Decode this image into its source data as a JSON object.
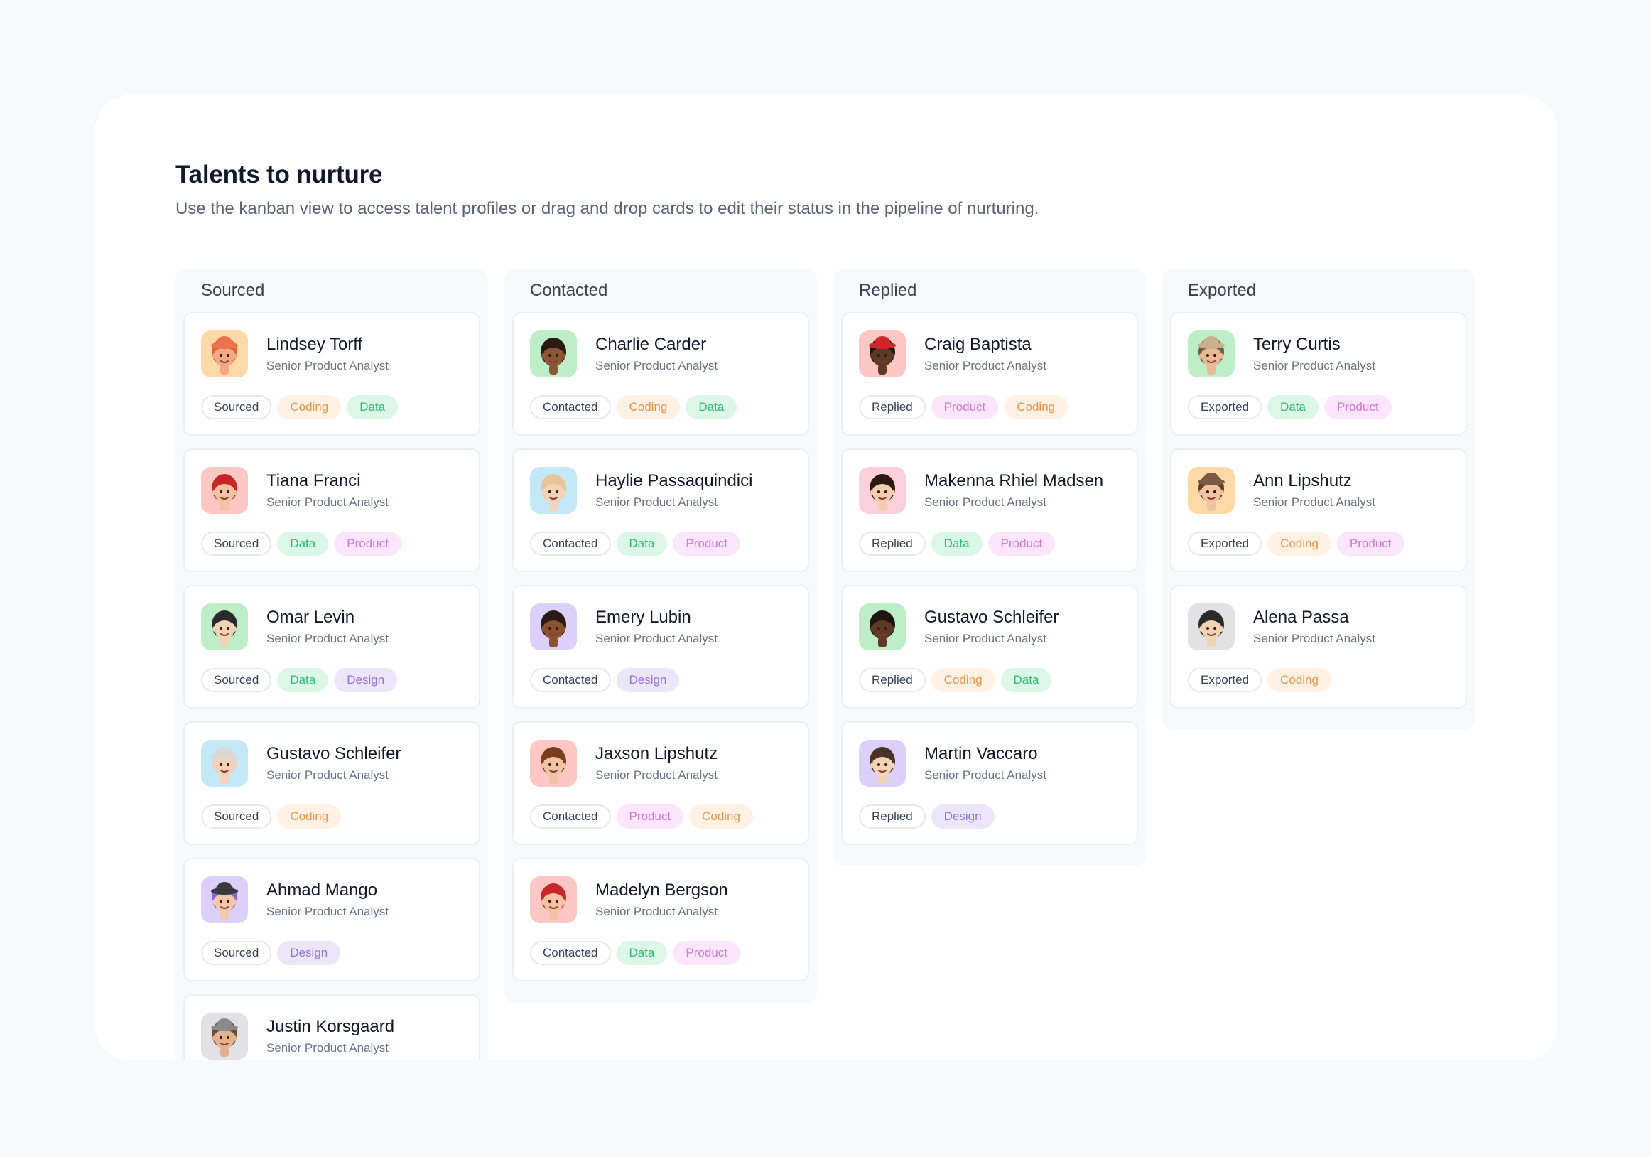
{
  "header": {
    "title": "Talents to nurture",
    "subtitle": "Use the kanban view to access talent profiles or drag and drop cards to edit their status in the pipeline of nurturing."
  },
  "tag_colors": {
    "Coding": {
      "bg": "#fff1e3",
      "fg": "#f0944a"
    },
    "Data": {
      "bg": "#dcf7e8",
      "fg": "#2dbb72"
    },
    "Product": {
      "bg": "#fbe6fb",
      "fg": "#d276d8"
    },
    "Design": {
      "bg": "#ece6fb",
      "fg": "#9473d6"
    }
  },
  "columns": [
    {
      "title": "Sourced",
      "cards": [
        {
          "name": "Lindsey Torff",
          "role": "Senior Product Analyst",
          "status": "Sourced",
          "tags": [
            "Coding",
            "Data"
          ],
          "avatar": {
            "bg": "#fdd9a8",
            "skin": "#f2a883",
            "hair": "#e0663a",
            "hat": "#e8734c"
          }
        },
        {
          "name": "Tiana Franci",
          "role": "Senior Product Analyst",
          "status": "Sourced",
          "tags": [
            "Data",
            "Product"
          ],
          "avatar": {
            "bg": "#fcc7c4",
            "skin": "#f1c2a3",
            "hair": "#c8272a",
            "hat": ""
          }
        },
        {
          "name": "Omar Levin",
          "role": "Senior Product Analyst",
          "status": "Sourced",
          "tags": [
            "Data",
            "Design"
          ],
          "avatar": {
            "bg": "#bdeec8",
            "skin": "#f3d3b6",
            "hair": "#2a2a2a",
            "hat": ""
          }
        },
        {
          "name": "Gustavo Schleifer",
          "role": "Senior Product Analyst",
          "status": "Sourced",
          "tags": [
            "Coding"
          ],
          "avatar": {
            "bg": "#c3e8f8",
            "skin": "#f4d1b8",
            "hair": "#d8d8d8",
            "hat": ""
          }
        },
        {
          "name": "Ahmad Mango",
          "role": "Senior Product Analyst",
          "status": "Sourced",
          "tags": [
            "Design"
          ],
          "avatar": {
            "bg": "#dccffa",
            "skin": "#f2c9a8",
            "hair": "#8e5ee0",
            "hat": "#3a3a3a"
          }
        },
        {
          "name": "Justin Korsgaard",
          "role": "Senior Product Analyst",
          "status": "Sourced",
          "tags": [],
          "avatar": {
            "bg": "#e2e2e4",
            "skin": "#e6b18e",
            "hair": "#6b4a3a",
            "hat": "#8a8a8a"
          }
        }
      ]
    },
    {
      "title": "Contacted",
      "cards": [
        {
          "name": "Charlie Carder",
          "role": "Senior Product Analyst",
          "status": "Contacted",
          "tags": [
            "Coding",
            "Data"
          ],
          "avatar": {
            "bg": "#bdeec8",
            "skin": "#8a5638",
            "hair": "#2b1a12",
            "hat": ""
          }
        },
        {
          "name": "Haylie Passaquindici",
          "role": "Senior Product Analyst",
          "status": "Contacted",
          "tags": [
            "Data",
            "Product"
          ],
          "avatar": {
            "bg": "#c3e8f8",
            "skin": "#f4d3b9",
            "hair": "#e8c69a",
            "hat": ""
          }
        },
        {
          "name": "Emery Lubin",
          "role": "Senior Product Analyst",
          "status": "Contacted",
          "tags": [
            "Design"
          ],
          "avatar": {
            "bg": "#dccffa",
            "skin": "#8a5230",
            "hair": "#2b1a12",
            "hat": ""
          }
        },
        {
          "name": "Jaxson Lipshutz",
          "role": "Senior Product Analyst",
          "status": "Contacted",
          "tags": [
            "Product",
            "Coding"
          ],
          "avatar": {
            "bg": "#fcc7c4",
            "skin": "#f1c2a3",
            "hair": "#7a3e1e",
            "hat": ""
          }
        },
        {
          "name": "Madelyn Bergson",
          "role": "Senior Product Analyst",
          "status": "Contacted",
          "tags": [
            "Data",
            "Product"
          ],
          "avatar": {
            "bg": "#fcc7c4",
            "skin": "#f1c2a3",
            "hair": "#c8272a",
            "hat": ""
          }
        }
      ]
    },
    {
      "title": "Replied",
      "cards": [
        {
          "name": "Craig Baptista",
          "role": "Senior Product Analyst",
          "status": "Replied",
          "tags": [
            "Product",
            "Coding"
          ],
          "avatar": {
            "bg": "#fcc7c4",
            "skin": "#5e3a26",
            "hair": "#1f1510",
            "hat": "#d0262b"
          }
        },
        {
          "name": "Makenna Rhiel Madsen",
          "role": "Senior Product Analyst",
          "status": "Replied",
          "tags": [
            "Data",
            "Product"
          ],
          "avatar": {
            "bg": "#fbd0dc",
            "skin": "#f3cdb2",
            "hair": "#2b1a12",
            "hat": ""
          }
        },
        {
          "name": "Gustavo Schleifer",
          "role": "Senior Product Analyst",
          "status": "Replied",
          "tags": [
            "Coding",
            "Data"
          ],
          "avatar": {
            "bg": "#bdeec8",
            "skin": "#5e3a26",
            "hair": "#1f1510",
            "hat": ""
          }
        },
        {
          "name": "Martin Vaccaro",
          "role": "Senior Product Analyst",
          "status": "Replied",
          "tags": [
            "Design"
          ],
          "avatar": {
            "bg": "#dccffa",
            "skin": "#f3d3b6",
            "hair": "#4a3226",
            "hat": ""
          }
        }
      ]
    },
    {
      "title": "Exported",
      "cards": [
        {
          "name": "Terry Curtis",
          "role": "Senior Product Analyst",
          "status": "Exported",
          "tags": [
            "Data",
            "Product"
          ],
          "avatar": {
            "bg": "#bdeec8",
            "skin": "#e9b894",
            "hair": "#6b5a4a",
            "hat": "#c9b28a"
          }
        },
        {
          "name": "Ann Lipshutz",
          "role": "Senior Product Analyst",
          "status": "Exported",
          "tags": [
            "Coding",
            "Product"
          ],
          "avatar": {
            "bg": "#fdd9a8",
            "skin": "#f0c4a2",
            "hair": "#6b3a1e",
            "hat": "#7a5a44"
          }
        },
        {
          "name": "Alena Passa",
          "role": "Senior Product Analyst",
          "status": "Exported",
          "tags": [
            "Coding"
          ],
          "avatar": {
            "bg": "#e2e2e4",
            "skin": "#f3d3b6",
            "hair": "#2a2a2a",
            "hat": ""
          }
        }
      ]
    }
  ]
}
